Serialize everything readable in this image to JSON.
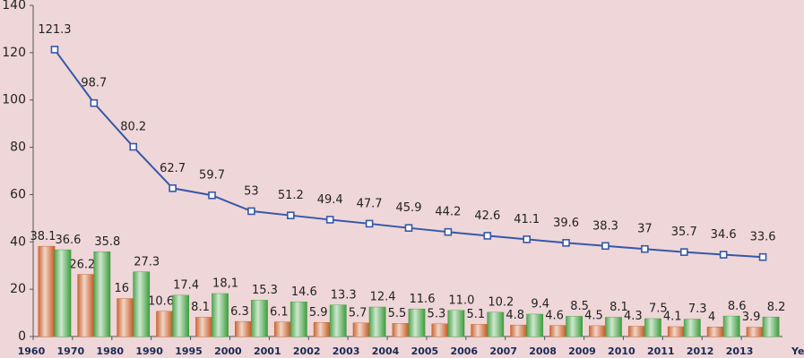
{
  "chart_data": {
    "type": "combo",
    "x_label": "Year",
    "categories": [
      "1960",
      "1970",
      "1980",
      "1990",
      "1995",
      "2000",
      "2001",
      "2002",
      "2003",
      "2004",
      "2005",
      "2006",
      "2007",
      "2008",
      "2009",
      "2010",
      "2011",
      "2012",
      "2013"
    ],
    "series": [
      {
        "type": "bar",
        "color": "#c65a22",
        "values": [
          38.1,
          26.2,
          16,
          10.6,
          8.1,
          6.3,
          6.1,
          5.9,
          5.7,
          5.5,
          5.3,
          5.1,
          4.8,
          4.6,
          4.5,
          4.3,
          4.1,
          4,
          3.9
        ]
      },
      {
        "type": "bar",
        "color": "#3f9e3f",
        "values": [
          36.6,
          35.8,
          27.3,
          17.4,
          18.1,
          15.3,
          14.6,
          13.3,
          12.4,
          11.6,
          11.0,
          10.2,
          9.4,
          8.5,
          8.1,
          7.5,
          7.3,
          8.6,
          8.2
        ],
        "value_labels": [
          "36.6",
          "35.8",
          "27.3",
          "17.4",
          "18,1",
          "15.3",
          "14.6",
          "13.3",
          "12.4",
          "11.6",
          "11.0",
          "10.2",
          "9.4",
          "8.5",
          "8.1",
          "7.5",
          "7.3",
          "8.6",
          "8.2"
        ]
      },
      {
        "type": "line",
        "color": "#3558a8",
        "values": [
          121.3,
          98.7,
          80.2,
          62.7,
          59.7,
          53,
          51.2,
          49.4,
          47.7,
          45.9,
          44.2,
          42.6,
          41.1,
          39.6,
          38.3,
          37,
          35.7,
          34.6,
          33.6
        ]
      }
    ],
    "ylim": [
      0,
      140
    ],
    "yticks": [
      0,
      20,
      40,
      60,
      80,
      100,
      120,
      140
    ],
    "grid": false
  }
}
